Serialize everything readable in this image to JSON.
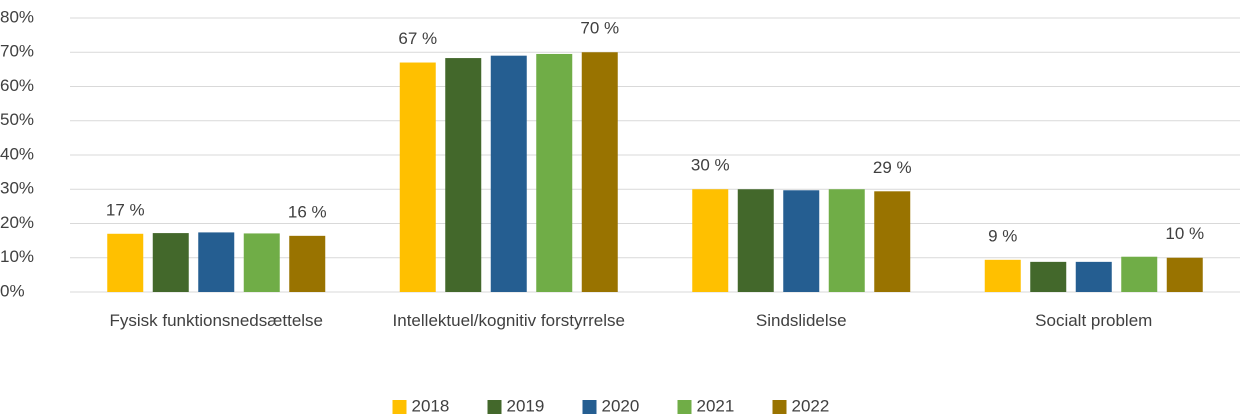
{
  "chart_data": {
    "type": "bar",
    "categories": [
      "Fysisk funktionsnedsættelse",
      "Intellektuel/kognitiv forstyrrelse",
      "Sindslidelse",
      "Socialt problem"
    ],
    "series": [
      {
        "name": "2018",
        "color": "#ffc000",
        "values": [
          17,
          67,
          30,
          9.4
        ],
        "value_labels": [
          "17 %",
          "67 %",
          "30 %",
          "9 %"
        ]
      },
      {
        "name": "2019",
        "color": "#43682b",
        "values": [
          17.2,
          68.3,
          30,
          8.8
        ]
      },
      {
        "name": "2020",
        "color": "#255e91",
        "values": [
          17.4,
          69,
          29.7,
          8.8
        ]
      },
      {
        "name": "2021",
        "color": "#70ad47",
        "values": [
          17.1,
          69.5,
          30,
          10.3
        ]
      },
      {
        "name": "2022",
        "color": "#997300",
        "values": [
          16.4,
          70,
          29.4,
          10
        ],
        "value_labels": [
          "16 %",
          "70 %",
          "29 %",
          "10 %"
        ]
      }
    ],
    "ylim": [
      0,
      80
    ],
    "yticks": [
      {
        "value": 0,
        "label": "0%"
      },
      {
        "value": 10,
        "label": "10%"
      },
      {
        "value": 20,
        "label": "20%"
      },
      {
        "value": 30,
        "label": "30%"
      },
      {
        "value": 40,
        "label": "40%"
      },
      {
        "value": 50,
        "label": "50%"
      },
      {
        "value": 60,
        "label": "60%"
      },
      {
        "value": 70,
        "label": "70%"
      },
      {
        "value": 80,
        "label": "80%"
      }
    ],
    "grid": true,
    "legend": "bottom"
  }
}
